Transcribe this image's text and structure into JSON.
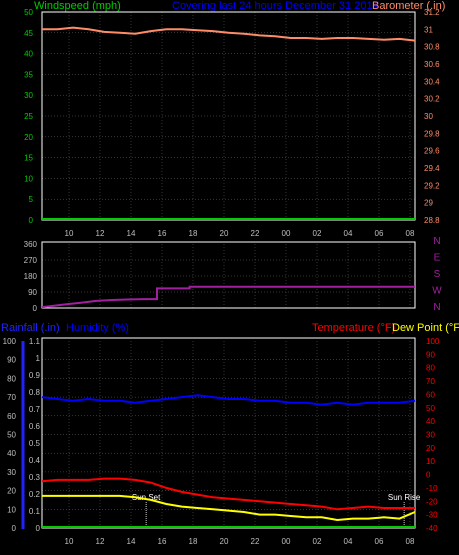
{
  "header": {
    "windspeed_label": "Windspeed (mph)",
    "title": "Covering last 24 hours December 31 2014",
    "barometer_label": "Barometer (.in)"
  },
  "colors": {
    "background": "#000000",
    "frame": "#ffffff",
    "grid": "#6a6a6a",
    "windspeed": "#00cc00",
    "title": "#0000ff",
    "barometer": "#ff8c69",
    "direction": "#a020a0",
    "rainfall": "#2222ff",
    "humidity": "#0000ff",
    "temperature": "#ff0000",
    "dewpoint": "#ffff00",
    "annotation": "#ffffff",
    "tick_text": "#bfbfbf"
  },
  "x_axis": {
    "tick_labels": [
      "10",
      "12",
      "14",
      "16",
      "18",
      "20",
      "22",
      "00",
      "02",
      "04",
      "06",
      "08"
    ]
  },
  "chart_data": [
    {
      "type": "line",
      "title": "Covering last 24 hours December 31 2014",
      "left_axis": {
        "label": "Windspeed (mph)",
        "ticks": [
          "0",
          "5",
          "10",
          "15",
          "20",
          "25",
          "30",
          "35",
          "40",
          "45",
          "50"
        ],
        "range": [
          0,
          50
        ]
      },
      "right_axis": {
        "label": "Barometer (.in)",
        "ticks": [
          "28.8",
          "29",
          "29.2",
          "29.4",
          "29.6",
          "29.8",
          "30",
          "30.2",
          "30.4",
          "30.6",
          "30.8",
          "31",
          "31.2"
        ],
        "range": [
          28.8,
          31.2
        ]
      },
      "grid": true,
      "series": [
        {
          "name": "Barometer (.in)",
          "axis": "right",
          "color": "#ff8c69",
          "x": [
            0,
            1,
            2,
            3,
            4,
            5,
            6,
            7,
            8,
            9,
            10,
            11,
            12,
            13,
            14,
            15,
            16,
            17,
            18,
            19,
            20,
            21,
            22,
            23,
            24
          ],
          "values": [
            31.0,
            31.0,
            31.02,
            31.0,
            30.97,
            30.96,
            30.95,
            30.98,
            31.0,
            31.0,
            30.99,
            30.98,
            30.96,
            30.95,
            30.93,
            30.92,
            30.9,
            30.9,
            30.89,
            30.9,
            30.9,
            30.89,
            30.88,
            30.89,
            30.87
          ]
        },
        {
          "name": "Windspeed (mph)",
          "axis": "left",
          "color": "#00cc00",
          "x": [
            0,
            24
          ],
          "values": [
            0,
            0
          ]
        }
      ]
    },
    {
      "type": "line",
      "left_axis": {
        "ticks": [
          "0",
          "90",
          "180",
          "270",
          "360"
        ],
        "range": [
          0,
          360
        ]
      },
      "right_axis": {
        "ticks": [
          "N",
          "W",
          "S",
          "E",
          "N"
        ]
      },
      "grid": true,
      "series": [
        {
          "name": "Wind direction",
          "color": "#a020a0",
          "x": [
            0,
            0.5,
            1.5,
            2.5,
            3.5,
            4.5,
            5.5,
            6.5,
            7.4,
            7.4,
            9.5,
            9.5,
            24
          ],
          "values": [
            5,
            10,
            20,
            30,
            40,
            45,
            48,
            50,
            50,
            110,
            110,
            120,
            120
          ]
        }
      ]
    },
    {
      "type": "line",
      "left_axis": {
        "label": "Rainfall (.in)",
        "ticks": [
          "0",
          "0.1",
          "0.2",
          "0.3",
          "0.4",
          "0.5",
          "0.6",
          "0.7",
          "0.8",
          "0.9",
          "1",
          "1.1"
        ],
        "range": [
          0,
          1.1
        ]
      },
      "humidity_axis": {
        "label": "Humidity (%)",
        "ticks": [
          "0",
          "10",
          "20",
          "30",
          "40",
          "50",
          "60",
          "70",
          "80",
          "90",
          "100"
        ],
        "range": [
          0,
          100
        ]
      },
      "right_axis": {
        "label": "Temperature (°F)",
        "label2": "Dew Point (°F)",
        "ticks": [
          "-40",
          "-30",
          "-20",
          "-10",
          "0",
          "10",
          "20",
          "30",
          "40",
          "50",
          "60",
          "70",
          "80",
          "90",
          "100"
        ],
        "range": [
          -40,
          100
        ]
      },
      "annotations": [
        {
          "label": "Sun Set",
          "x": 6.7
        },
        {
          "label": "Sun Rise",
          "x": 23.3
        }
      ],
      "grid": true,
      "series": [
        {
          "name": "Humidity (%)",
          "axis": "humidity",
          "color": "#0000ff",
          "x": [
            0,
            1,
            2,
            3,
            4,
            5,
            6,
            7,
            8,
            9,
            10,
            11,
            12,
            13,
            14,
            15,
            16,
            17,
            18,
            19,
            20,
            21,
            22,
            23,
            24
          ],
          "values": [
            70,
            69,
            68,
            69,
            68,
            68,
            67,
            68,
            69,
            70,
            71,
            70,
            69,
            69,
            68,
            68,
            67,
            67,
            66,
            67,
            66,
            67,
            67,
            67,
            68
          ]
        },
        {
          "name": "Temperature (°F)",
          "axis": "right",
          "color": "#ff0000",
          "x": [
            0,
            1,
            2,
            3,
            4,
            5,
            6,
            7,
            8,
            9,
            10,
            11,
            12,
            13,
            14,
            15,
            16,
            17,
            18,
            19,
            20,
            21,
            22,
            23,
            24
          ],
          "values": [
            -5,
            -4,
            -4,
            -4,
            -3,
            -3,
            -4,
            -6,
            -10,
            -13,
            -15,
            -17,
            -18,
            -19,
            -20,
            -21,
            -22,
            -23,
            -24,
            -26,
            -25,
            -24,
            -25,
            -25,
            -25
          ]
        },
        {
          "name": "Dew Point (°F)",
          "axis": "right",
          "color": "#ffff00",
          "x": [
            0,
            1,
            2,
            3,
            4,
            5,
            6,
            7,
            8,
            9,
            10,
            11,
            12,
            13,
            14,
            15,
            16,
            17,
            18,
            19,
            20,
            21,
            22,
            23,
            24
          ],
          "values": [
            -16,
            -16,
            -16,
            -16,
            -16,
            -16,
            -17,
            -19,
            -22,
            -24,
            -25,
            -26,
            -27,
            -28,
            -30,
            -30,
            -31,
            -32,
            -32,
            -34,
            -33,
            -33,
            -32,
            -33,
            -28
          ]
        },
        {
          "name": "Rainfall (.in)",
          "axis": "left",
          "color": "#00cc00",
          "x": [
            0,
            24
          ],
          "values": [
            0,
            0
          ]
        }
      ]
    }
  ]
}
